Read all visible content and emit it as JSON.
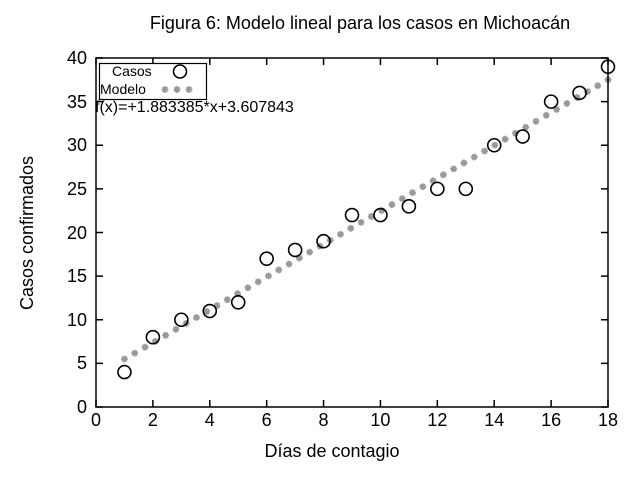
{
  "figure": {
    "background": "#ffffff"
  },
  "chart_data": {
    "type": "scatter",
    "title": "Figura 6: Modelo lineal para los casos en Michoacán",
    "xlabel": "Días de contagio",
    "ylabel": "Casos confirmados",
    "xlim": [
      0,
      18
    ],
    "ylim": [
      0,
      40
    ],
    "xticks": [
      0,
      2,
      4,
      6,
      8,
      10,
      12,
      14,
      16,
      18
    ],
    "yticks": [
      0,
      5,
      10,
      15,
      20,
      25,
      30,
      35,
      40
    ],
    "grid": false,
    "legend_position": "top-left",
    "annotation": "f(x)=+1.883385*x+3.607843",
    "series": [
      {
        "name": "Casos",
        "marker": "open-circle",
        "color": "#000000",
        "x": [
          1,
          2,
          3,
          4,
          5,
          6,
          7,
          8,
          9,
          10,
          11,
          12,
          13,
          14,
          15,
          16,
          17,
          18
        ],
        "y": [
          4,
          8,
          10,
          11,
          12,
          17,
          18,
          19,
          22,
          22,
          23,
          25,
          25,
          30,
          31,
          35,
          36,
          39
        ]
      },
      {
        "name": "Modelo",
        "marker": "asterisk",
        "color": "#999999",
        "model": {
          "slope": 1.883385,
          "intercept": 3.607843,
          "x_start": 1,
          "x_end": 18,
          "n_points": 48
        }
      }
    ]
  }
}
